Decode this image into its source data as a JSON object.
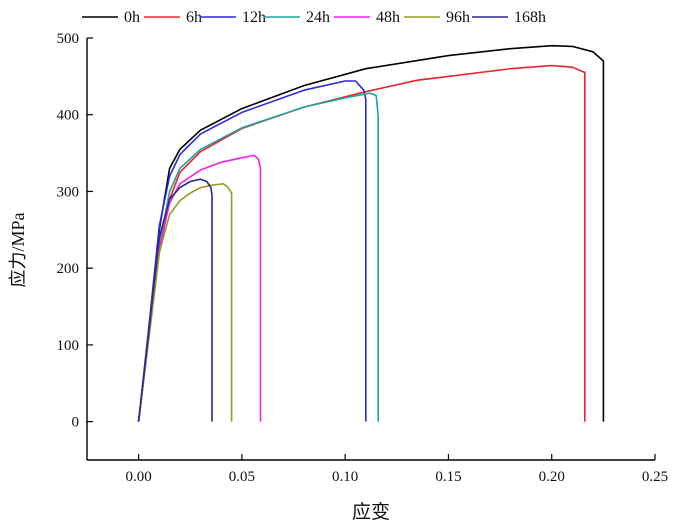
{
  "chart_data": {
    "type": "line",
    "title": "",
    "xlabel": "应变",
    "ylabel": "应力/MPa",
    "xlim": [
      -0.025,
      0.25
    ],
    "ylim": [
      -50,
      500
    ],
    "xticks": [
      "0.00",
      "0.05",
      "0.10",
      "0.15",
      "0.20",
      "0.25"
    ],
    "yticks": [
      "0",
      "100",
      "200",
      "300",
      "400",
      "500"
    ],
    "grid": false,
    "legend_placement": "top",
    "series": [
      {
        "name": "0h",
        "color": "#000000",
        "x": [
          0,
          0.005,
          0.01,
          0.015,
          0.02,
          0.03,
          0.05,
          0.08,
          0.11,
          0.15,
          0.18,
          0.2,
          0.21,
          0.22,
          0.225,
          0.225
        ],
        "y": [
          0,
          120,
          250,
          330,
          355,
          380,
          408,
          438,
          460,
          477,
          486,
          490,
          489,
          482,
          470,
          0
        ]
      },
      {
        "name": "6h",
        "color": "#e8262a",
        "x": [
          0,
          0.005,
          0.01,
          0.015,
          0.02,
          0.03,
          0.05,
          0.08,
          0.11,
          0.135,
          0.15,
          0.18,
          0.2,
          0.21,
          0.216,
          0.216
        ],
        "y": [
          0,
          110,
          220,
          290,
          325,
          352,
          382,
          410,
          430,
          445,
          450,
          460,
          464,
          462,
          455,
          0
        ]
      },
      {
        "name": "12h",
        "color": "#2b2bd8",
        "x": [
          0,
          0.005,
          0.01,
          0.015,
          0.02,
          0.03,
          0.05,
          0.08,
          0.1,
          0.105,
          0.109,
          0.11,
          0.11
        ],
        "y": [
          0,
          125,
          255,
          320,
          348,
          375,
          403,
          432,
          444,
          444,
          432,
          420,
          0
        ]
      },
      {
        "name": "24h",
        "color": "#1fa3a0",
        "x": [
          0,
          0.005,
          0.01,
          0.015,
          0.02,
          0.03,
          0.05,
          0.08,
          0.1,
          0.112,
          0.115,
          0.116,
          0.116
        ],
        "y": [
          0,
          115,
          230,
          300,
          330,
          355,
          383,
          410,
          422,
          428,
          425,
          398,
          0
        ]
      },
      {
        "name": "48h",
        "color": "#f020e8",
        "x": [
          0,
          0.005,
          0.01,
          0.015,
          0.02,
          0.03,
          0.04,
          0.05,
          0.056,
          0.058,
          0.059,
          0.059
        ],
        "y": [
          0,
          115,
          225,
          285,
          310,
          328,
          338,
          344,
          347,
          342,
          330,
          0
        ]
      },
      {
        "name": "96h",
        "color": "#9a9a22",
        "x": [
          0,
          0.005,
          0.01,
          0.015,
          0.02,
          0.025,
          0.03,
          0.035,
          0.041,
          0.043,
          0.045,
          0.045
        ],
        "y": [
          0,
          112,
          220,
          270,
          288,
          298,
          305,
          308,
          310,
          306,
          298,
          0
        ]
      },
      {
        "name": "168h",
        "color": "#2a2a8a",
        "x": [
          0,
          0.005,
          0.01,
          0.015,
          0.02,
          0.025,
          0.03,
          0.033,
          0.035,
          0.0355,
          0.0355
        ],
        "y": [
          0,
          120,
          240,
          290,
          305,
          313,
          316,
          313,
          305,
          295,
          0
        ]
      }
    ]
  }
}
